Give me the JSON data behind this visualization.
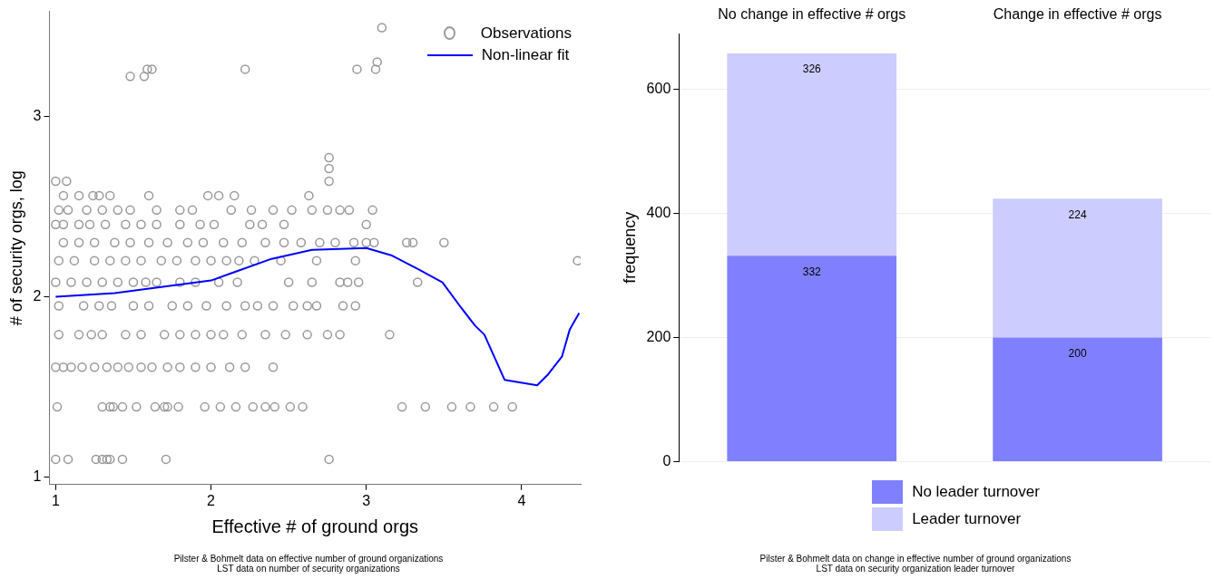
{
  "chart_data": [
    {
      "type": "scatter",
      "xlabel": "Effective # of ground orgs",
      "ylabel": "# of security orgs, log",
      "xlim": [
        0.96,
        4.38
      ],
      "ylim": [
        0.96,
        3.58
      ],
      "xticks": [
        1,
        2,
        3,
        4
      ],
      "yticks": [
        1,
        2,
        3
      ],
      "grid": false,
      "legend": "top right",
      "series": [
        {
          "name": "Observations",
          "type": "scatter",
          "marker": "circle",
          "color": "#999999",
          "x": [
            1.0,
            1.08,
            1.26,
            1.3,
            1.33,
            1.35,
            1.43,
            1.71,
            2.76,
            1.01,
            1.3,
            1.35,
            1.37,
            1.43,
            1.52,
            1.64,
            1.7,
            1.72,
            1.79,
            1.96,
            2.06,
            2.16,
            2.27,
            2.35,
            2.41,
            2.51,
            2.59,
            3.23,
            3.38,
            3.55,
            3.67,
            3.82,
            3.94,
            1.0,
            1.05,
            1.1,
            1.17,
            1.25,
            1.33,
            1.4,
            1.47,
            1.55,
            1.62,
            1.72,
            1.8,
            1.9,
            2.0,
            2.12,
            2.22,
            2.4,
            1.02,
            1.15,
            1.23,
            1.3,
            1.45,
            1.55,
            1.7,
            1.8,
            1.9,
            2.0,
            2.08,
            2.2,
            2.35,
            2.48,
            2.62,
            2.75,
            2.83,
            3.15,
            1.02,
            1.18,
            1.28,
            1.36,
            1.5,
            1.6,
            1.75,
            1.85,
            1.97,
            2.1,
            2.22,
            2.3,
            2.4,
            2.53,
            2.62,
            2.68,
            2.85,
            2.93,
            1.0,
            1.1,
            1.2,
            1.3,
            1.4,
            1.5,
            1.58,
            1.65,
            1.8,
            1.9,
            2.05,
            2.17,
            2.5,
            2.65,
            2.83,
            2.88,
            2.95,
            3.33,
            1.02,
            1.12,
            1.25,
            1.35,
            1.45,
            1.55,
            1.68,
            1.78,
            1.9,
            2.0,
            2.1,
            2.18,
            2.28,
            2.45,
            2.68,
            2.93,
            4.36,
            1.05,
            1.15,
            1.25,
            1.38,
            1.48,
            1.6,
            1.72,
            1.85,
            1.95,
            2.08,
            2.2,
            2.35,
            2.47,
            2.58,
            2.7,
            2.8,
            2.92,
            3.0,
            3.05,
            3.26,
            3.3,
            3.5,
            1.0,
            1.05,
            1.15,
            1.22,
            1.32,
            1.45,
            1.55,
            1.65,
            1.8,
            1.93,
            2.02,
            2.25,
            2.33,
            2.47,
            3.0,
            1.02,
            1.08,
            1.2,
            1.3,
            1.4,
            1.48,
            1.65,
            1.8,
            1.88,
            2.13,
            2.26,
            2.4,
            2.52,
            2.65,
            2.75,
            2.83,
            2.89,
            3.04,
            1.05,
            1.15,
            1.24,
            1.28,
            1.35,
            1.6,
            1.98,
            2.05,
            2.15,
            2.63,
            1.0,
            1.07,
            2.76,
            2.76,
            2.76,
            1.48,
            1.57,
            1.59,
            1.62,
            2.22,
            2.94,
            3.06,
            3.07,
            3.1
          ],
          "values": [
            1.1,
            1.1,
            1.1,
            1.1,
            1.1,
            1.1,
            1.1,
            1.1,
            1.1,
            1.39,
            1.39,
            1.39,
            1.39,
            1.39,
            1.39,
            1.39,
            1.39,
            1.39,
            1.39,
            1.39,
            1.39,
            1.39,
            1.39,
            1.39,
            1.39,
            1.39,
            1.39,
            1.39,
            1.39,
            1.39,
            1.39,
            1.39,
            1.39,
            1.61,
            1.61,
            1.61,
            1.61,
            1.61,
            1.61,
            1.61,
            1.61,
            1.61,
            1.61,
            1.61,
            1.61,
            1.61,
            1.61,
            1.61,
            1.61,
            1.61,
            1.79,
            1.79,
            1.79,
            1.79,
            1.79,
            1.79,
            1.79,
            1.79,
            1.79,
            1.79,
            1.79,
            1.79,
            1.79,
            1.79,
            1.79,
            1.79,
            1.79,
            1.79,
            1.95,
            1.95,
            1.95,
            1.95,
            1.95,
            1.95,
            1.95,
            1.95,
            1.95,
            1.95,
            1.95,
            1.95,
            1.95,
            1.95,
            1.95,
            1.95,
            1.95,
            1.95,
            2.08,
            2.08,
            2.08,
            2.08,
            2.08,
            2.08,
            2.08,
            2.08,
            2.08,
            2.08,
            2.08,
            2.08,
            2.08,
            2.08,
            2.08,
            2.08,
            2.08,
            2.08,
            2.2,
            2.2,
            2.2,
            2.2,
            2.2,
            2.2,
            2.2,
            2.2,
            2.2,
            2.2,
            2.2,
            2.2,
            2.2,
            2.2,
            2.2,
            2.2,
            2.2,
            2.3,
            2.3,
            2.3,
            2.3,
            2.3,
            2.3,
            2.3,
            2.3,
            2.3,
            2.3,
            2.3,
            2.3,
            2.3,
            2.3,
            2.3,
            2.3,
            2.3,
            2.3,
            2.3,
            2.3,
            2.3,
            2.3,
            2.4,
            2.4,
            2.4,
            2.4,
            2.4,
            2.4,
            2.4,
            2.4,
            2.4,
            2.4,
            2.4,
            2.4,
            2.4,
            2.4,
            2.4,
            2.48,
            2.48,
            2.48,
            2.48,
            2.48,
            2.48,
            2.48,
            2.48,
            2.48,
            2.48,
            2.48,
            2.48,
            2.48,
            2.48,
            2.48,
            2.48,
            2.48,
            2.48,
            2.56,
            2.56,
            2.56,
            2.56,
            2.56,
            2.56,
            2.56,
            2.56,
            2.56,
            2.56,
            2.64,
            2.64,
            2.64,
            2.71,
            2.77,
            3.22,
            3.22,
            3.26,
            3.26,
            3.26,
            3.26,
            3.26,
            3.3,
            3.49
          ]
        },
        {
          "name": "Non-linear fit",
          "type": "line",
          "marker": "none",
          "line_style": "solid",
          "color": "#0000ff",
          "x": [
            1.0,
            1.38,
            2.0,
            2.39,
            2.65,
            3.0,
            3.16,
            3.34,
            3.49,
            3.61,
            3.7,
            3.76,
            3.89,
            4.1,
            4.17,
            4.26,
            4.31,
            4.37
          ],
          "values": [
            2.0,
            2.02,
            2.09,
            2.21,
            2.26,
            2.27,
            2.23,
            2.15,
            2.08,
            1.94,
            1.84,
            1.79,
            1.54,
            1.51,
            1.57,
            1.67,
            1.82,
            1.91
          ]
        }
      ],
      "annotations": [
        "Pilster & Bohmelt data on effective number of ground organizations",
        "LST data on number of security organizations"
      ]
    },
    {
      "type": "bar",
      "stacked": true,
      "ylabel": "frequency",
      "categories": [
        "No change in effective # orgs",
        "Change in effective # orgs"
      ],
      "ylim": [
        0,
        690
      ],
      "yticks": [
        0,
        200,
        400,
        600
      ],
      "grid": "y",
      "legend": "bottom",
      "data_labels": true,
      "series": [
        {
          "name": "No leader turnover",
          "color": "#8080ff",
          "values": [
            332,
            200
          ]
        },
        {
          "name": "Leader turnover",
          "color": "#ccccff",
          "values": [
            326,
            224
          ]
        }
      ],
      "annotations": [
        "Pilster & Bohmelt data on change in effective number of ground organizations",
        "LST data on security organization leader turnover"
      ]
    }
  ]
}
